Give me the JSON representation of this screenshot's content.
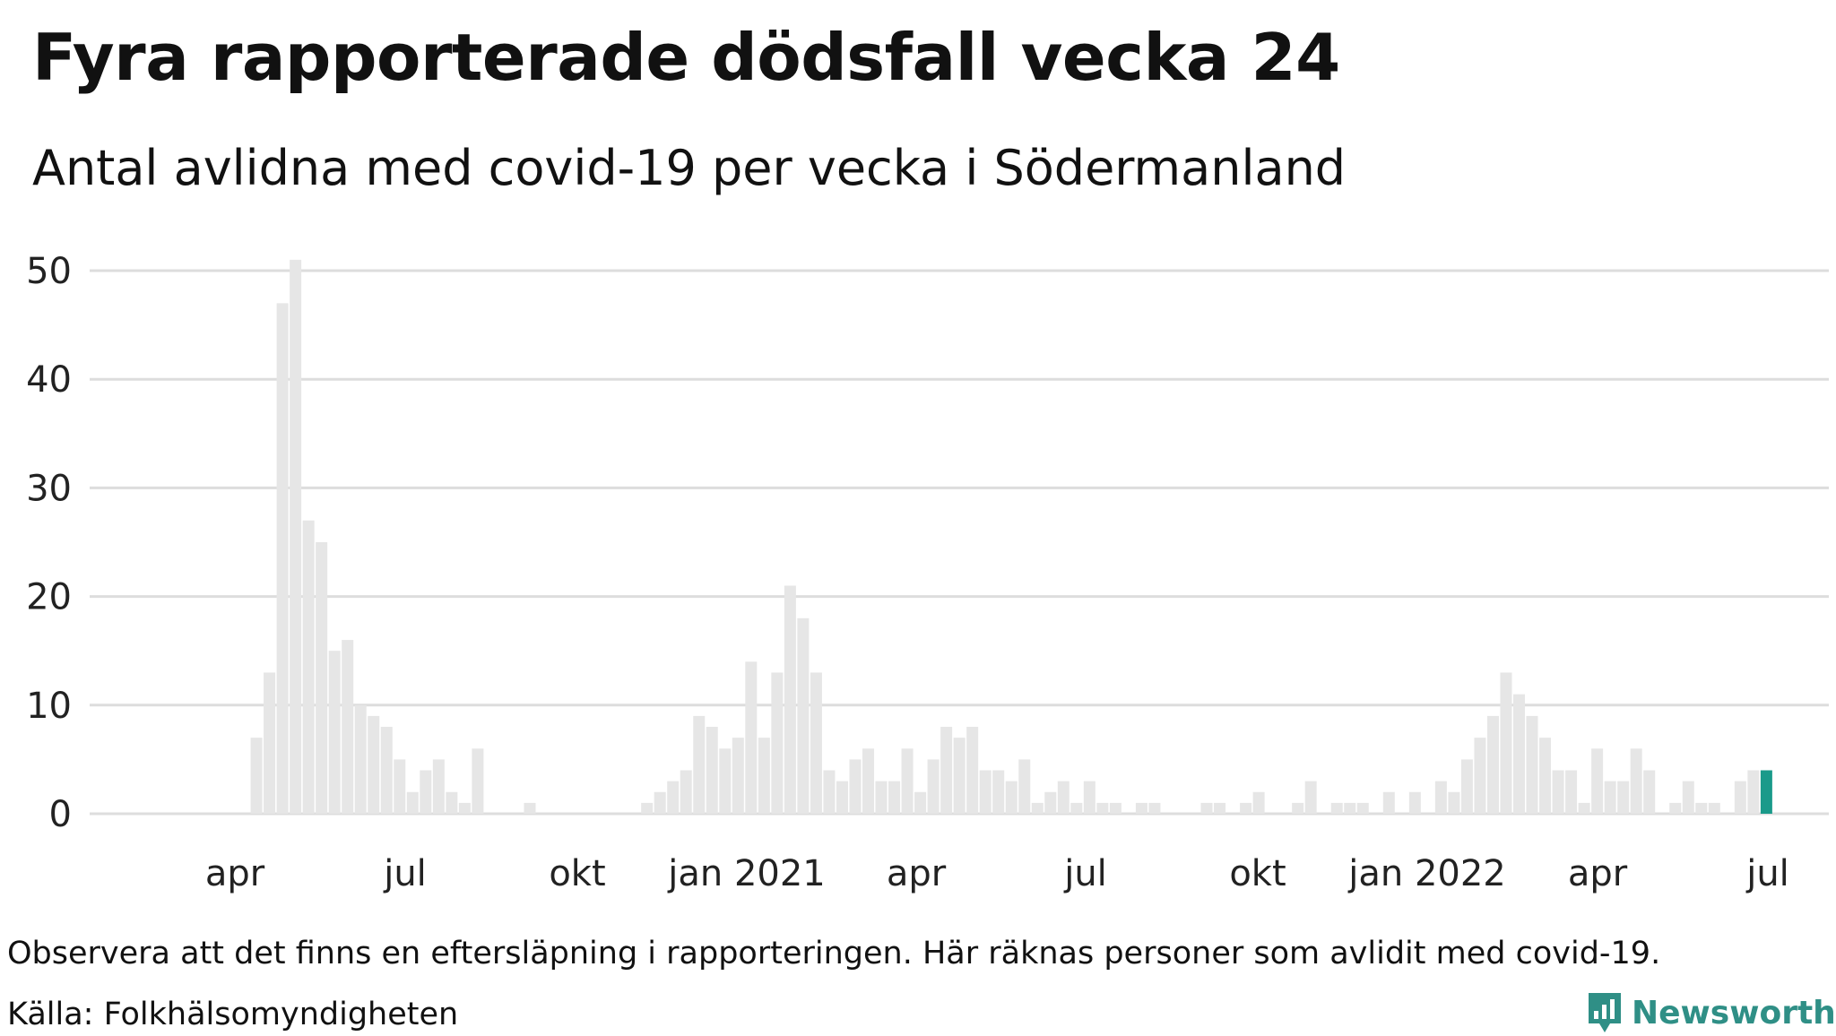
{
  "title": "Fyra rapporterade dödsfall vecka 24",
  "subtitle": "Antal avlidna med covid-19 per vecka i Södermanland",
  "note": "Observera att det finns en eftersläpning i rapporteringen. Här räknas personer som avlidit med covid-19.",
  "source": "Källa: Folkhälsomyndigheten",
  "logo_text": "Newsworthy",
  "colors": {
    "bar": "#e6e6e6",
    "highlight": "#1a9a8a",
    "grid": "#dddddd",
    "logo": "#2f8f86"
  },
  "chart_data": {
    "type": "bar",
    "ylim": [
      0,
      50
    ],
    "yticks": [
      0,
      10,
      20,
      30,
      40,
      50
    ],
    "grid": true,
    "x_ticks": [
      "apr",
      "jul",
      "okt",
      "jan 2021",
      "apr",
      "jul",
      "okt",
      "jan 2022",
      "apr",
      "jul"
    ],
    "highlight_index": 119,
    "values": [
      0,
      0,
      0,
      7,
      13,
      47,
      51,
      27,
      25,
      15,
      16,
      10,
      9,
      8,
      5,
      2,
      4,
      5,
      2,
      1,
      6,
      0,
      0,
      0,
      1,
      0,
      0,
      0,
      0,
      0,
      0,
      0,
      0,
      1,
      2,
      3,
      4,
      9,
      8,
      6,
      7,
      14,
      7,
      13,
      21,
      18,
      13,
      4,
      3,
      5,
      6,
      3,
      3,
      6,
      2,
      5,
      8,
      7,
      8,
      4,
      4,
      3,
      5,
      1,
      2,
      3,
      1,
      3,
      1,
      1,
      0,
      1,
      1,
      0,
      0,
      0,
      1,
      1,
      0,
      1,
      2,
      0,
      0,
      1,
      3,
      0,
      1,
      1,
      1,
      0,
      2,
      0,
      2,
      0,
      3,
      2,
      5,
      7,
      9,
      13,
      11,
      9,
      7,
      4,
      4,
      1,
      6,
      3,
      3,
      6,
      4,
      0,
      1,
      3,
      1,
      1,
      0,
      3,
      4,
      4
    ]
  }
}
